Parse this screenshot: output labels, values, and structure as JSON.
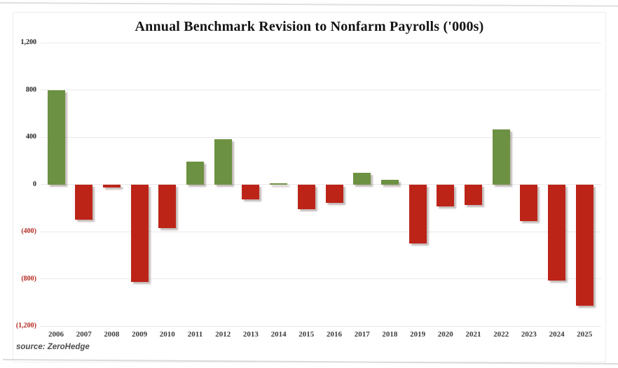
{
  "page": {
    "source_label": "source: ZeroHedge"
  },
  "chart_data": {
    "type": "bar",
    "title": "Annual Benchmark Revision to Nonfarm Payrolls ('000s)",
    "xlabel": "",
    "ylabel": "",
    "unit": "thousands of payrolls",
    "categories": [
      "2006",
      "2007",
      "2008",
      "2009",
      "2010",
      "2011",
      "2012",
      "2013",
      "2014",
      "2015",
      "2016",
      "2017",
      "2018",
      "2019",
      "2020",
      "2021",
      "2022",
      "2023",
      "2024",
      "2025"
    ],
    "values": [
      800,
      -300,
      -25,
      -825,
      -370,
      190,
      385,
      -130,
      10,
      -210,
      -155,
      95,
      40,
      -500,
      -185,
      -175,
      465,
      -310,
      -815,
      -1030
    ],
    "ylim": [
      -1200,
      1200
    ],
    "yticks": [
      1200,
      800,
      400,
      0,
      -400,
      -800,
      -1200
    ],
    "ytick_labels": [
      "1,200",
      "800",
      "400",
      "0",
      "(400)",
      "(800)",
      "(1,200)"
    ],
    "grid": true,
    "legend_position": "none",
    "negative_number_format": "parentheses",
    "colors": {
      "bar_positive": "#6d9142",
      "bar_negative": "#bd2418",
      "ytick_positive_text": "#1f1f1f",
      "ytick_negative_text": "#b42b22",
      "gridline": "#e9e9e9",
      "title_text": "#141414",
      "xtick_text": "#3c3c3c",
      "source_text": "#4e4e4e"
    }
  }
}
